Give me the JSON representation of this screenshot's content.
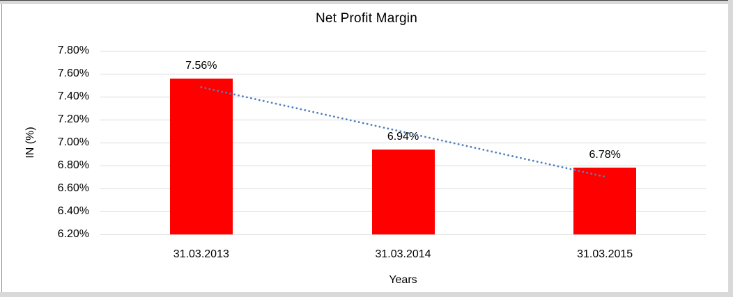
{
  "chart_data": {
    "type": "bar",
    "title": "Net Profit Margin",
    "xlabel": "Years",
    "ylabel": "IN (%)",
    "categories": [
      "31.03.2013",
      "31.03.2014",
      "31.03.2015"
    ],
    "values": [
      7.56,
      6.94,
      6.78
    ],
    "data_labels": [
      "7.56%",
      "6.94%",
      "6.78%"
    ],
    "yticks": [
      {
        "value": 7.8,
        "label": "7.80%"
      },
      {
        "value": 7.6,
        "label": "7.60%"
      },
      {
        "value": 7.4,
        "label": "7.40%"
      },
      {
        "value": 7.2,
        "label": "7.20%"
      },
      {
        "value": 7.0,
        "label": "7.00%"
      },
      {
        "value": 6.8,
        "label": "6.80%"
      },
      {
        "value": 6.6,
        "label": "6.60%"
      },
      {
        "value": 6.4,
        "label": "6.40%"
      },
      {
        "value": 6.2,
        "label": "6.20%"
      }
    ],
    "ylim": [
      6.2,
      7.8
    ],
    "grid": true,
    "legend": "none",
    "bar_color": "#ff0000",
    "gridline_color": "#d9d9d9",
    "trendline": {
      "type": "linear",
      "style": "dotted",
      "color": "#4f81bd",
      "start_value": 7.483,
      "end_value": 6.703
    }
  }
}
